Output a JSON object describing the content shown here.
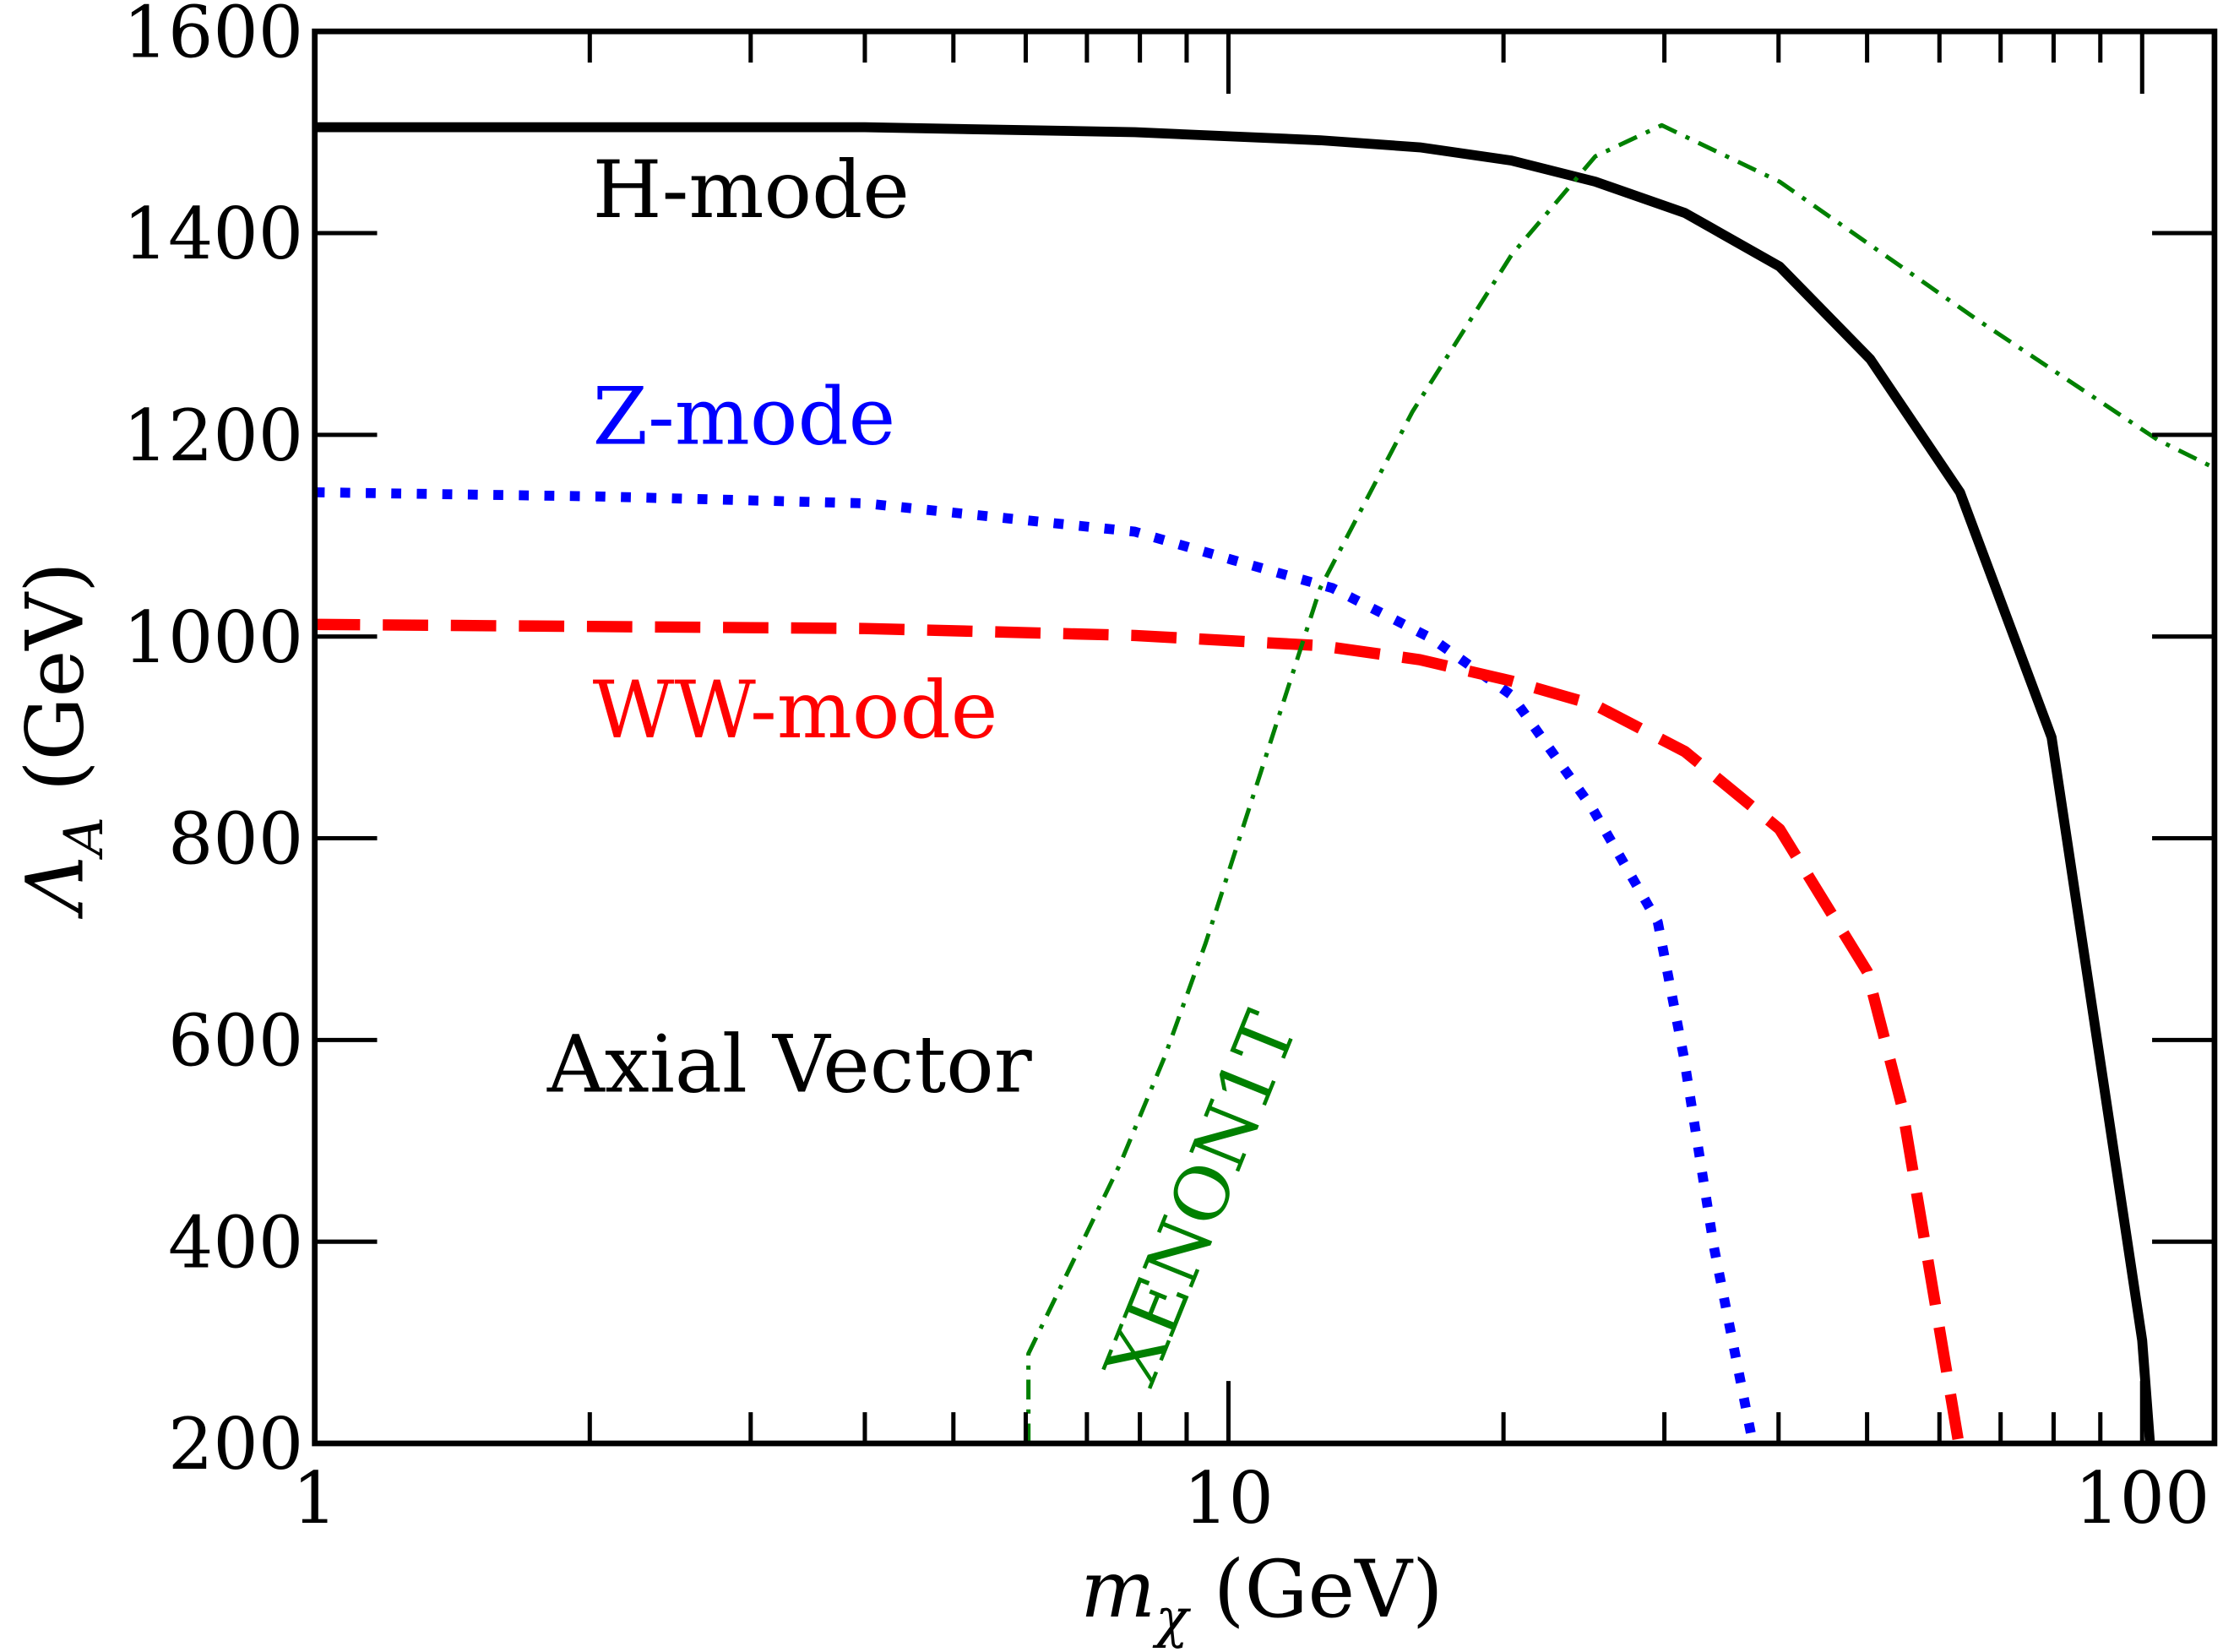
{
  "chart_data": {
    "type": "line",
    "xlabel_main": "m",
    "xlabel_sub": "χ",
    "xlabel_unit": " (GeV)",
    "ylabel_main": "Λ",
    "ylabel_sub": "A",
    "ylabel_unit": " (GeV)",
    "xscale": "log",
    "xlim": [
      1,
      120
    ],
    "ylim": [
      200,
      1600
    ],
    "grid": false,
    "xticks": [
      {
        "value": 1,
        "label": "1"
      },
      {
        "value": 10,
        "label": "10"
      },
      {
        "value": 100,
        "label": "100"
      }
    ],
    "yticks": [
      {
        "value": 200,
        "label": "200"
      },
      {
        "value": 400,
        "label": "400"
      },
      {
        "value": 600,
        "label": "600"
      },
      {
        "value": 800,
        "label": "800"
      },
      {
        "value": 1000,
        "label": "1000"
      },
      {
        "value": 1200,
        "label": "1200"
      },
      {
        "value": 1400,
        "label": "1400"
      },
      {
        "value": 1600,
        "label": "1600"
      }
    ],
    "annotations": {
      "h_mode": "H-mode",
      "z_mode": "Z-mode",
      "ww_mode": "WW-mode",
      "panel": "Axial Vector",
      "xenon": "XENON1T"
    },
    "series": [
      {
        "name": "H-mode",
        "color": "#000000",
        "style": "solid",
        "x": [
          1,
          4,
          7.9,
          12.6,
          16.2,
          20.4,
          25.2,
          31.6,
          40.1,
          50.4,
          63.2,
          79.6,
          100,
          102
        ],
        "y": [
          1505,
          1505,
          1500,
          1492,
          1485,
          1472,
          1451,
          1420,
          1367,
          1275,
          1143,
          900,
          302,
          200
        ]
      },
      {
        "name": "Z-mode",
        "color": "#0000ff",
        "style": "dotted",
        "x": [
          1,
          2.03,
          4,
          7.9,
          10.1,
          13,
          16.7,
          20.4,
          25,
          29.5,
          31.5,
          34,
          37.5
        ],
        "y": [
          1143,
          1139,
          1132,
          1104,
          1076,
          1048,
          998,
          942,
          830,
          717,
          584,
          394,
          200
        ]
      },
      {
        "name": "WW-mode",
        "color": "#ff0000",
        "style": "dashed",
        "x": [
          1,
          4,
          7.9,
          12.6,
          16.2,
          20.4,
          25.2,
          31.6,
          40.1,
          50,
          54.6,
          63
        ],
        "y": [
          1012,
          1008,
          1001,
          991,
          977,
          956,
          932,
          886,
          809,
          668,
          534,
          200
        ]
      },
      {
        "name": "XENON1T",
        "color": "#008000",
        "style": "dashdot",
        "x": [
          6.04,
          6.04,
          7.62,
          8.52,
          9.44,
          12.6,
          15.9,
          20.4,
          25.2,
          29.8,
          40.1,
          65.8,
          104,
          120
        ],
        "y": [
          200,
          289,
          478,
          584,
          696,
          1048,
          1223,
          1378,
          1476,
          1507,
          1451,
          1315,
          1195,
          1167
        ]
      }
    ]
  }
}
